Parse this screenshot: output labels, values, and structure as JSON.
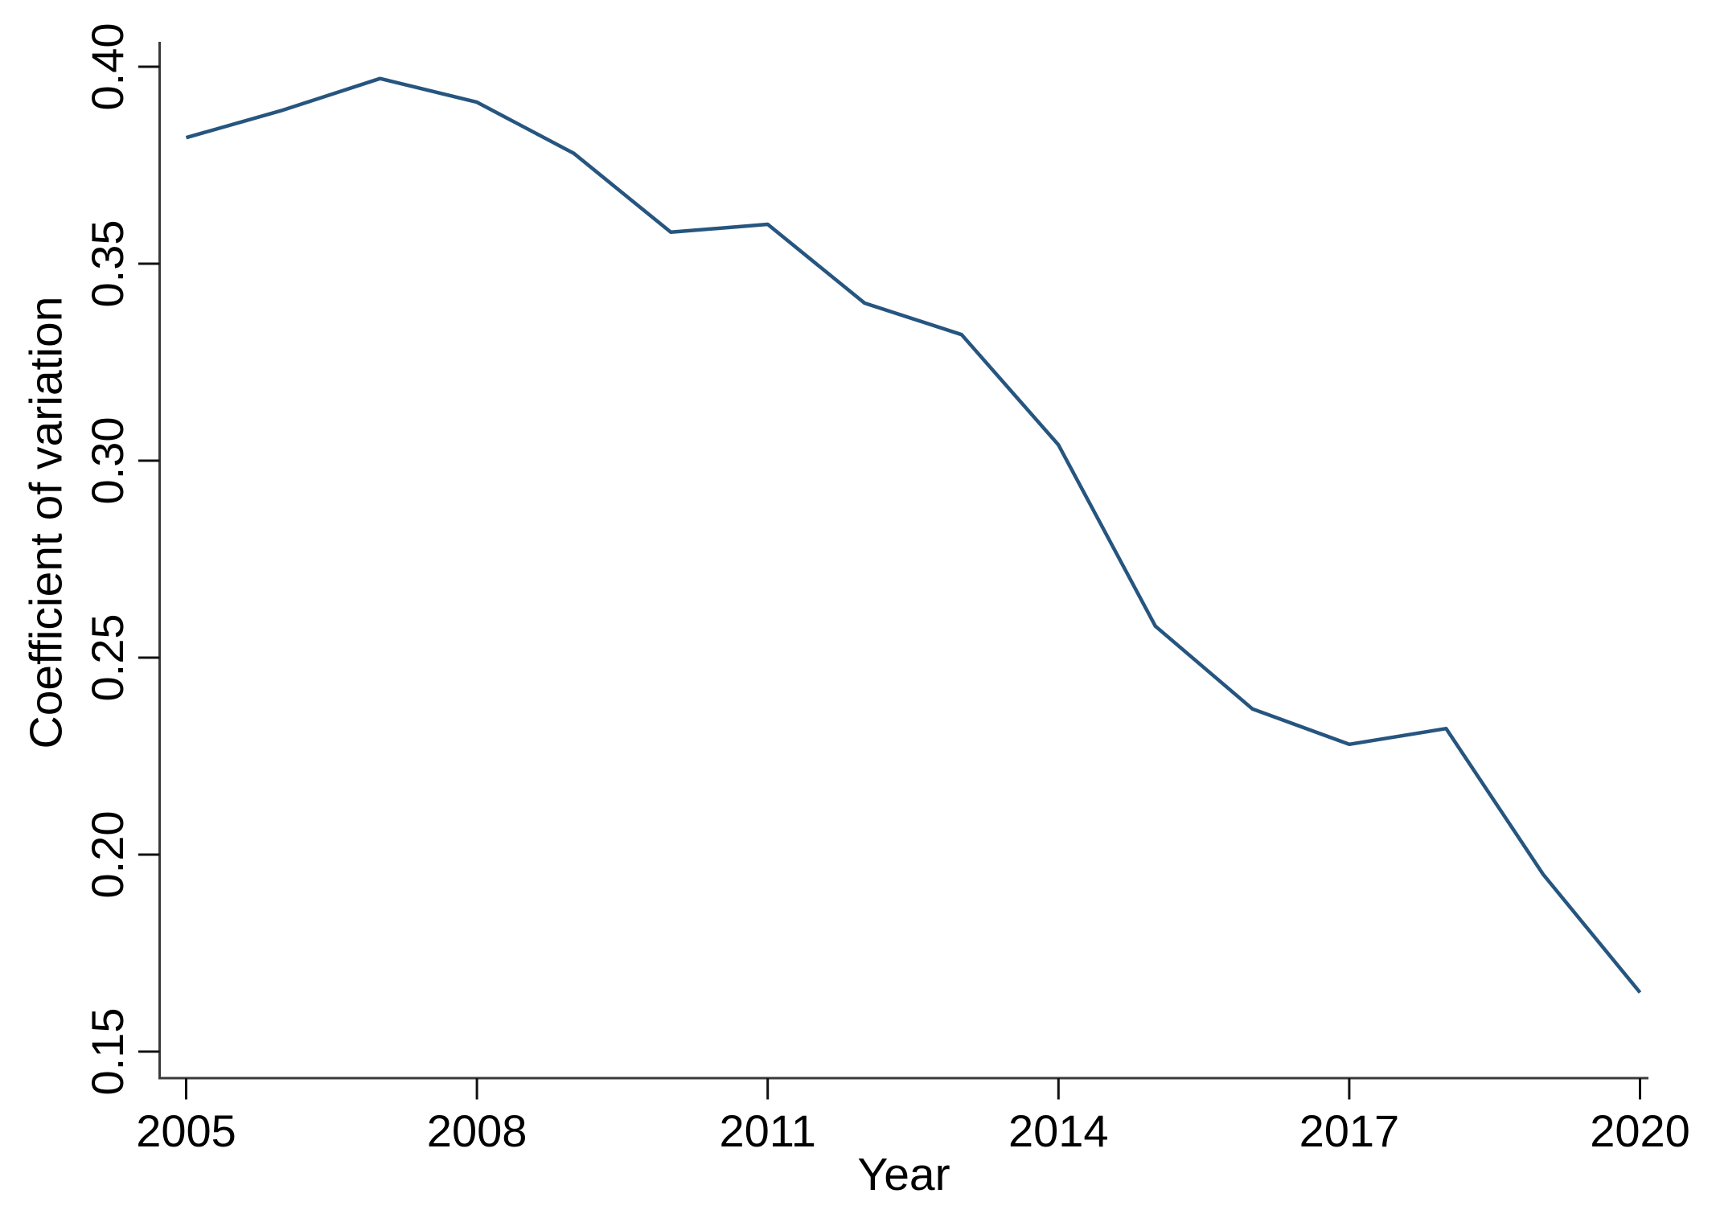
{
  "figure": {
    "background": "#ffffff",
    "line_color": "#26557f",
    "axis_color": "#3a3a3a",
    "tick_color": "#111111",
    "text_color": "#000000"
  },
  "axis_titles": {
    "x": "Year",
    "y": "Coefficient of variation"
  },
  "chart_data": {
    "type": "line",
    "title": "",
    "xlabel": "Year",
    "ylabel": "Coefficient of variation",
    "x": [
      2005,
      2006,
      2007,
      2008,
      2009,
      2010,
      2011,
      2012,
      2013,
      2014,
      2015,
      2016,
      2017,
      2018,
      2019,
      2020
    ],
    "series": [
      {
        "name": "Coefficient of variation",
        "values": [
          0.382,
          0.389,
          0.397,
          0.391,
          0.378,
          0.358,
          0.36,
          0.34,
          0.332,
          0.304,
          0.258,
          0.237,
          0.228,
          0.232,
          0.195,
          0.165
        ]
      }
    ],
    "xticks": [
      2005,
      2008,
      2011,
      2014,
      2017,
      2020
    ],
    "xtick_labels": [
      "2005",
      "2008",
      "2011",
      "2014",
      "2017",
      "2020"
    ],
    "yticks": [
      0.15,
      0.2,
      0.25,
      0.3,
      0.35,
      0.4
    ],
    "ytick_labels": [
      "0.15",
      "0.20",
      "0.25",
      "0.30",
      "0.35",
      "0.40"
    ],
    "xlim": [
      2004.72,
      2020.09
    ],
    "ylim": [
      0.143,
      0.406
    ],
    "grid": false,
    "legend": "none"
  }
}
